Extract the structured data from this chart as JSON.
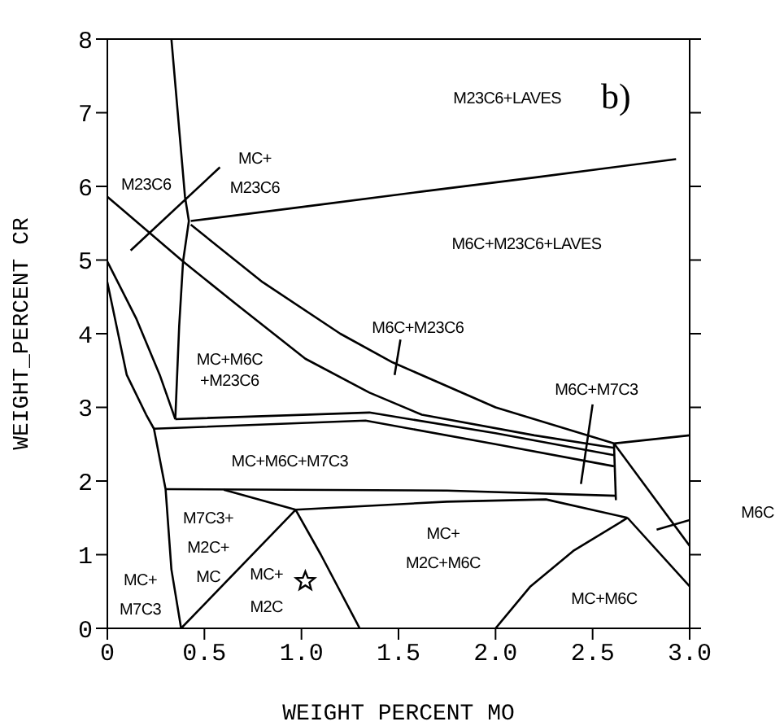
{
  "chart_data": {
    "type": "line",
    "xlabel": "WEIGHT PERCENT MO",
    "ylabel": "WEIGHT_PERCENT CR",
    "xlim": [
      0,
      3
    ],
    "xticks": [
      0,
      0.5,
      {
        "value": 1,
        "label": "1.0"
      },
      1.5,
      {
        "value": 2,
        "label": "2.0"
      },
      2.5,
      {
        "value": 3,
        "label": "3.0"
      }
    ],
    "ylim": [
      0,
      8
    ],
    "yticks": [
      0,
      1,
      2,
      3,
      4,
      5,
      6,
      7,
      8
    ],
    "grid": false,
    "marker": "none",
    "line_style": "solid",
    "series": [
      {
        "color": "#000000",
        "x": [
          0.33,
          0.4,
          0.42,
          0.39,
          0.37,
          0.35
        ],
        "values": [
          8,
          5.86,
          5.53,
          4.98,
          4.1,
          2.84
        ]
      },
      {
        "color": "#000000",
        "x": [
          0.43,
          1.0,
          1.62,
          2.2,
          2.93
        ],
        "values": [
          5.53,
          5.72,
          5.93,
          6.12,
          6.37
        ]
      },
      {
        "color": "#000000",
        "x": [
          0,
          0.39,
          0.66,
          1.02,
          1.35,
          1.62,
          2.2,
          2.61
        ],
        "values": [
          5.86,
          4.98,
          4.41,
          3.66,
          3.2,
          2.9,
          2.62,
          2.45
        ]
      },
      {
        "color": "#000000",
        "x": [
          0.43,
          0.8,
          1.2,
          1.47,
          2.0,
          2.61,
          3.0
        ],
        "values": [
          5.48,
          4.7,
          4.0,
          3.61,
          3.0,
          2.51,
          2.62
        ]
      },
      {
        "color": "#000000",
        "x": [
          0.35,
          1.35,
          2.0,
          2.61
        ],
        "values": [
          2.84,
          2.93,
          2.65,
          2.35
        ]
      },
      {
        "color": "#000000",
        "x": [
          0.24,
          1.33,
          2.0,
          2.61
        ],
        "values": [
          2.71,
          2.82,
          2.5,
          2.2
        ]
      },
      {
        "color": "#000000",
        "x": [
          0.3,
          1.75,
          2.62
        ],
        "values": [
          1.89,
          1.87,
          1.8
        ]
      },
      {
        "color": "#000000",
        "x": [
          0.6,
          0.97,
          1.75,
          2.26,
          2.68
        ],
        "values": [
          1.88,
          1.61,
          1.72,
          1.75,
          1.5
        ]
      },
      {
        "color": "#000000",
        "x": [
          2.61,
          2.62
        ],
        "values": [
          2.51,
          1.74
        ]
      },
      {
        "color": "#000000",
        "x": [
          2.61,
          3.0
        ],
        "values": [
          2.51,
          1.12
        ]
      },
      {
        "color": "#000000",
        "x": [
          2.68,
          3.0
        ],
        "values": [
          1.5,
          0.57
        ]
      },
      {
        "color": "#000000",
        "x": [
          2.0,
          2.18,
          2.4,
          2.68
        ],
        "values": [
          0,
          0.57,
          1.05,
          1.5
        ]
      },
      {
        "color": "#000000",
        "x": [
          0.38,
          0.97,
          1.1,
          1.3
        ],
        "values": [
          0,
          1.61,
          1.0,
          0
        ]
      },
      {
        "color": "#000000",
        "x": [
          0,
          0.15,
          0.27,
          0.35
        ],
        "values": [
          4.98,
          4.2,
          3.44,
          2.84
        ]
      },
      {
        "color": "#000000",
        "x": [
          0,
          0.1,
          0.2,
          0.24,
          0.3,
          0.33,
          0.38
        ],
        "values": [
          4.7,
          3.44,
          2.9,
          2.71,
          1.89,
          0.8,
          0
        ]
      },
      {
        "color": "#000000",
        "x": [
          0.12,
          0.58
        ],
        "values": [
          5.13,
          6.26
        ]
      },
      {
        "color": "#000000",
        "x": [
          1.51,
          1.48
        ],
        "values": [
          3.92,
          3.44
        ]
      },
      {
        "color": "#000000",
        "x": [
          2.5,
          2.44
        ],
        "values": [
          3.04,
          1.96
        ]
      },
      {
        "color": "#000000",
        "x": [
          2.83,
          3.0
        ],
        "values": [
          1.34,
          1.47
        ]
      },
      {
        "type": "scatter",
        "marker": "star",
        "color": "#000000",
        "x": [
          1.02
        ],
        "values": [
          0.64
        ]
      }
    ],
    "annotations": [
      "M23C6+LAVES",
      "b)",
      "M23C6",
      "MC+\nM23C6",
      "M6C+M23C6+LAVES",
      "M6C+M23C6",
      "MC+M6C\n+M23C6",
      "M6C+M7C3",
      "MC+M6C+M7C3",
      "M7C3+\nM2C+\nMC",
      "MC+\nM2C+M6C",
      "M6C",
      "MC+\nM7C3",
      "MC+\nM2C",
      "MC+M6C"
    ]
  }
}
